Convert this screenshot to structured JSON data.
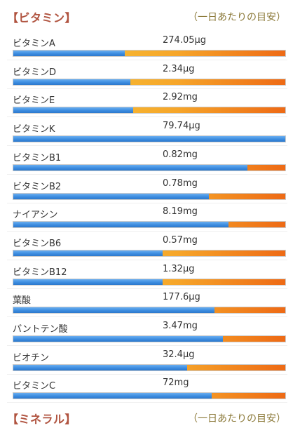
{
  "section": {
    "title": "【ビタミン】",
    "note": "（一日あたりの目安）"
  },
  "next_section": {
    "title": "【ミネラル】",
    "note": "（一日あたりの目安）"
  },
  "colors": {
    "fill": "#3d8de0",
    "remainder": "#f6a62a",
    "title": "#b0533f"
  },
  "chart_data": {
    "type": "bar",
    "categories": [
      "ビタミンA",
      "ビタミンD",
      "ビタミンE",
      "ビタミンK",
      "ビタミンB1",
      "ビタミンB2",
      "ナイアシン",
      "ビタミンB6",
      "ビタミンB12",
      "葉酸",
      "パントテン酸",
      "ビオチン",
      "ビタミンC"
    ],
    "values": [
      "274.05μg",
      "2.34μg",
      "2.92mg",
      "79.74μg",
      "0.82mg",
      "0.78mg",
      "8.19mg",
      "0.57mg",
      "1.32μg",
      "177.6μg",
      "3.47mg",
      "32.4μg",
      "72mg"
    ],
    "fill_percent": [
      41,
      43,
      44,
      100,
      86,
      72,
      79,
      55,
      55,
      74,
      77,
      64,
      73
    ],
    "xlim": [
      0,
      100
    ]
  }
}
